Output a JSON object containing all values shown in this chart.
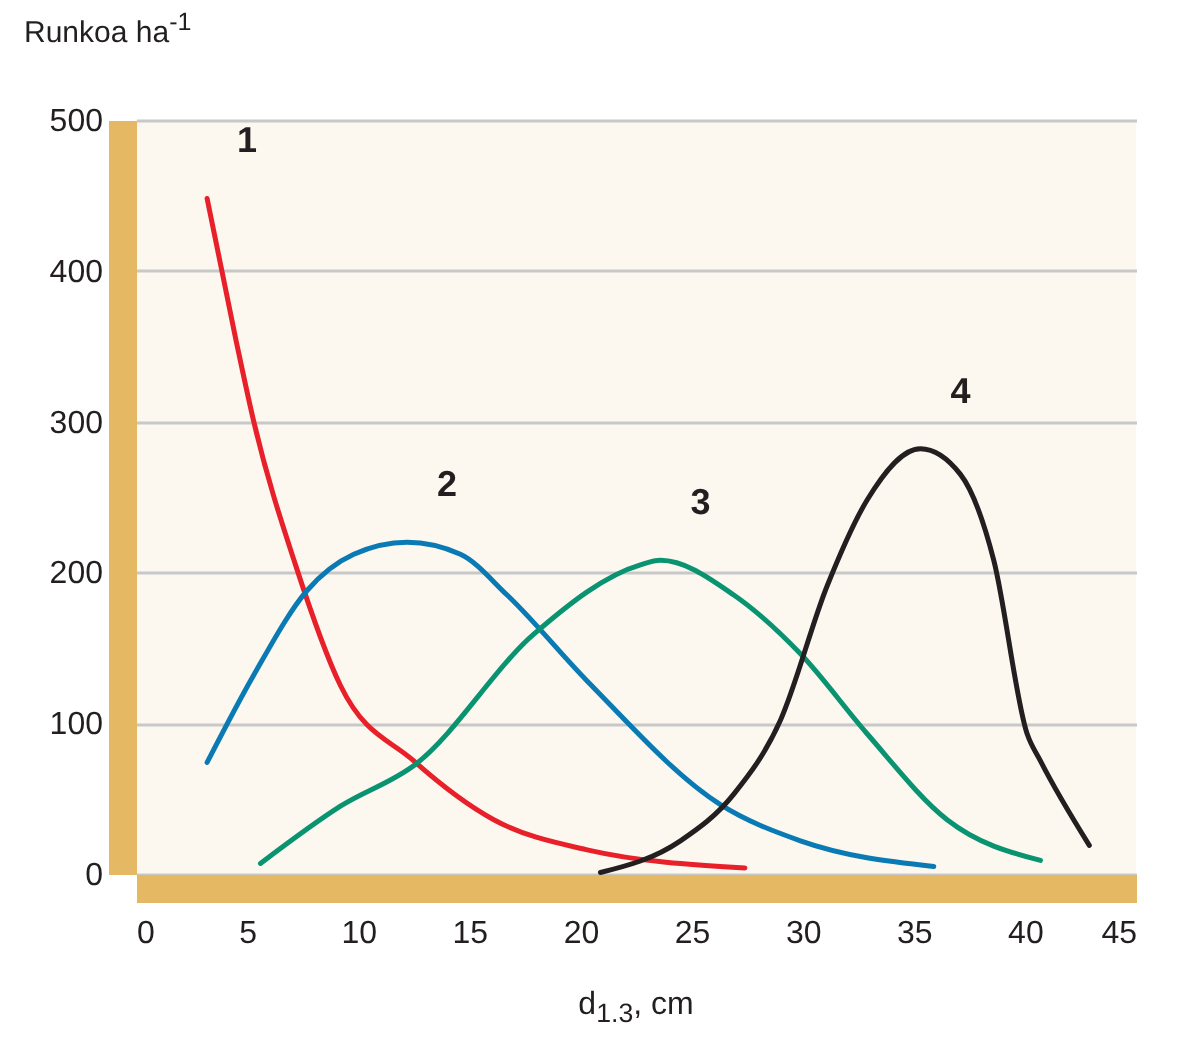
{
  "chart_data": {
    "type": "line",
    "xlabel": "d$_{1.3}$, cm",
    "ylabel": "Runkoa ha$^{-1}$",
    "xlim": [
      0,
      45
    ],
    "xticks": [
      0,
      5,
      10,
      15,
      20,
      25,
      30,
      35,
      40,
      45
    ],
    "ylim": [
      0,
      500
    ],
    "yticks": [
      0,
      100,
      200,
      300,
      400,
      500
    ],
    "grid": "y",
    "legend": false,
    "marker": "none",
    "line_style": "solid",
    "series": [
      {
        "name": "1",
        "color": "#e8202a",
        "x": [
          3.2,
          4.5,
          5.3,
          7.2,
          9.2,
          12.5,
          16.1,
          20.3,
          27.4
        ],
        "values": [
          448,
          354,
          300,
          204,
          125,
          75,
          36,
          16,
          4
        ]
      },
      {
        "name": "2",
        "color": "#0a7ab5",
        "x": [
          3.2,
          5.3,
          7.7,
          9.8,
          12.2,
          14.6,
          16.7,
          20.3,
          26.3,
          29.9,
          35.9
        ],
        "values": [
          74,
          132,
          188,
          212,
          220,
          212,
          185,
          128,
          46,
          22,
          5
        ]
      },
      {
        "name": "3",
        "color": "#0a9370",
        "x": [
          5.6,
          9.2,
          12.6,
          17.9,
          22.7,
          23.6,
          26.9,
          29.9,
          32.9,
          36.5,
          40.7
        ],
        "values": [
          7,
          45,
          73,
          159,
          205,
          208,
          185,
          146,
          93,
          36,
          9
        ]
      },
      {
        "name": "4",
        "color": "#231f20",
        "x": [
          20.9,
          24.5,
          26.9,
          29,
          31.1,
          32.9,
          35.3,
          37.1,
          38.6,
          40.1,
          40.7,
          42.9
        ],
        "values": [
          1,
          22,
          53,
          102,
          191,
          248,
          282,
          265,
          208,
          93,
          75,
          19
        ]
      }
    ]
  }
}
